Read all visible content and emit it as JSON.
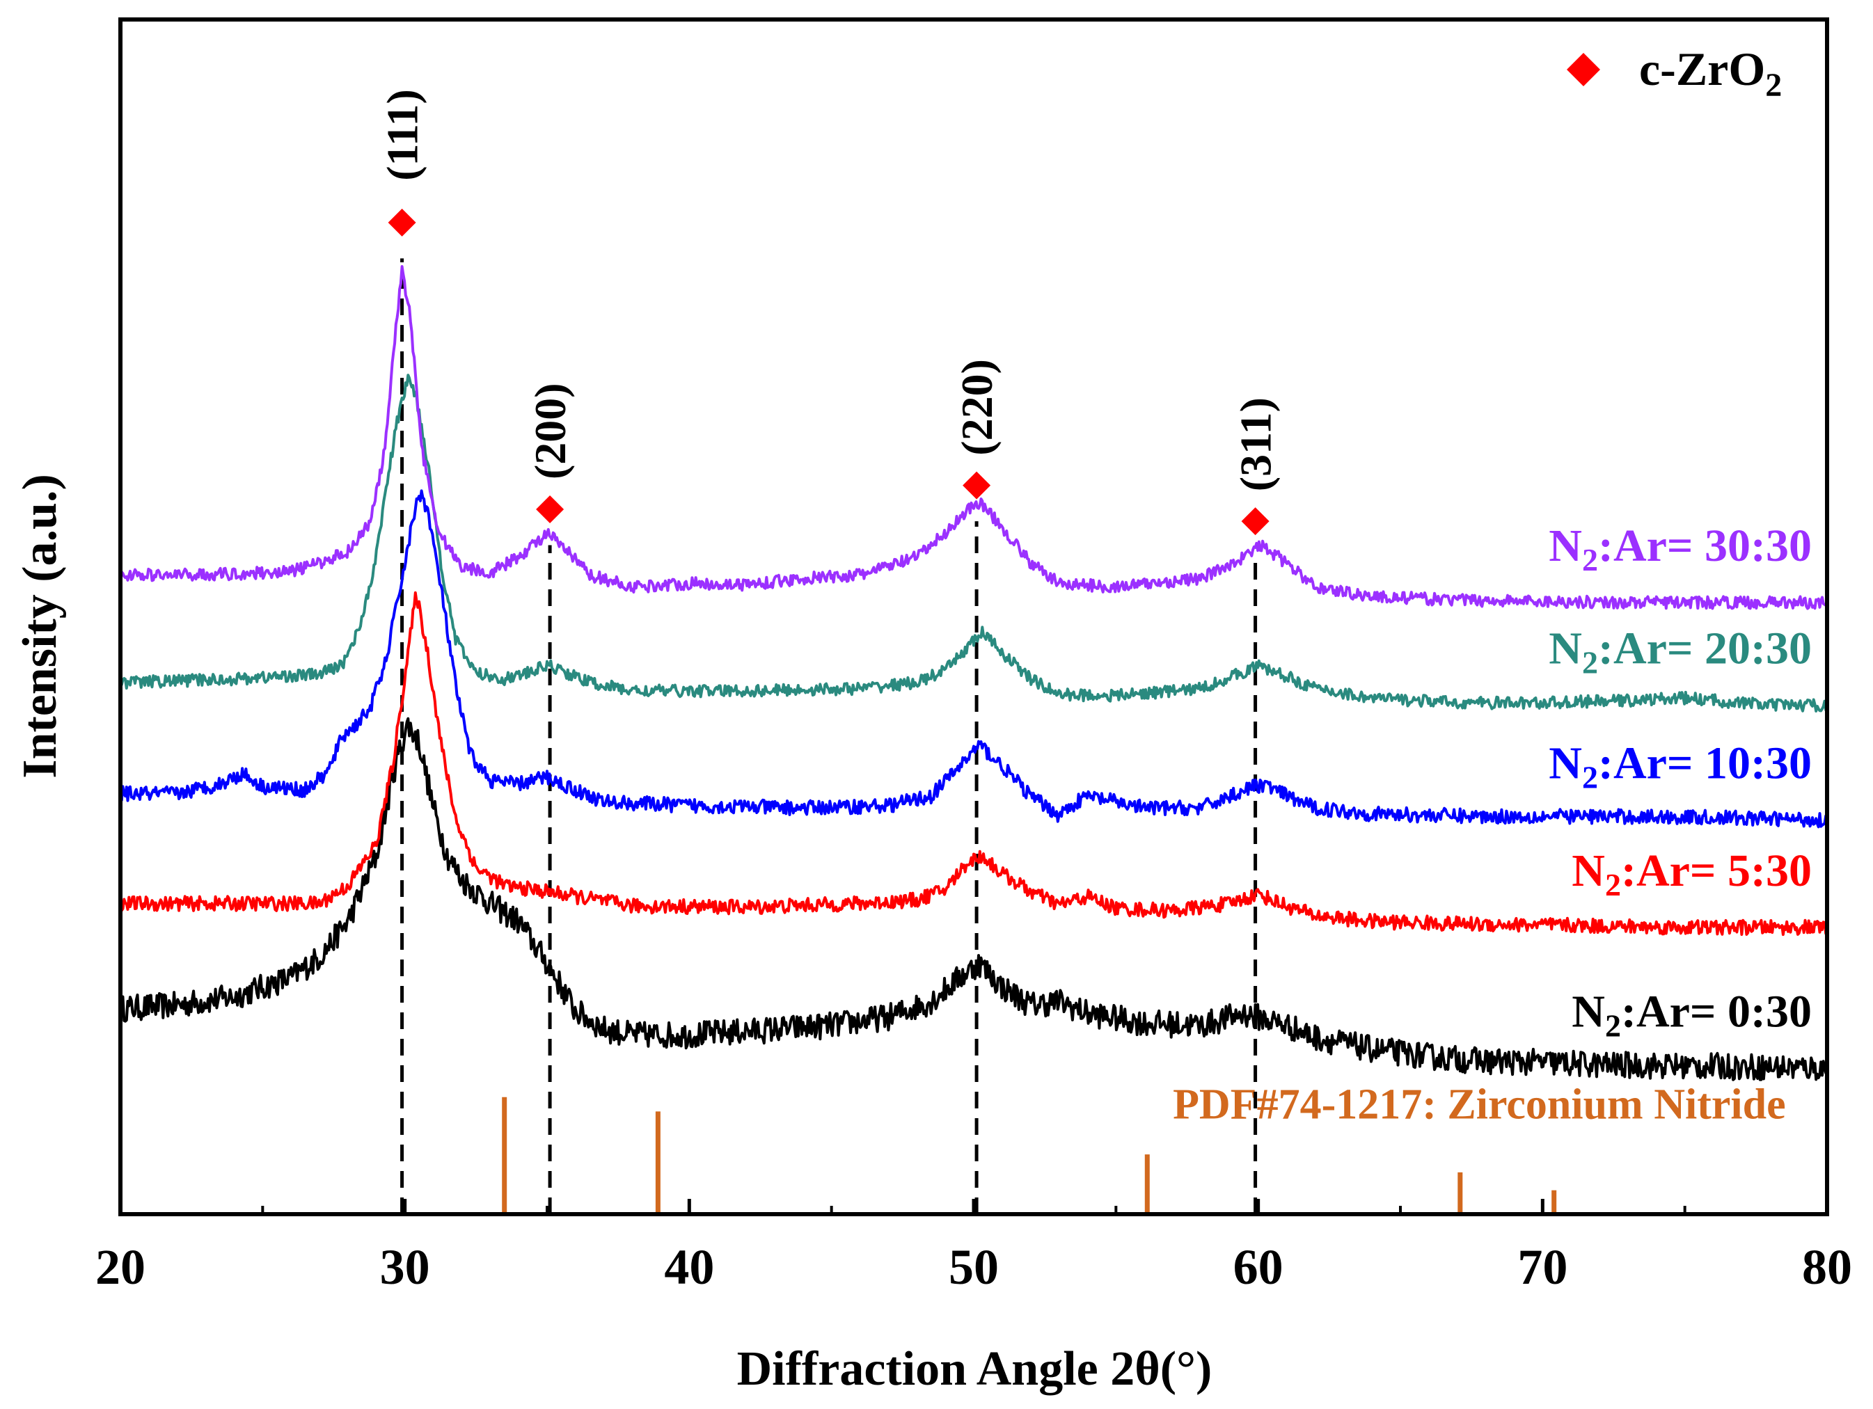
{
  "chart_data": {
    "type": "line",
    "title": "",
    "xlabel": "Diffraction Angle 2θ(°)",
    "ylabel": "Intensity (a.u.)",
    "xlim": [
      20,
      80
    ],
    "ylim": [
      0,
      100
    ],
    "xticks": [
      20,
      30,
      40,
      50,
      60,
      70,
      80
    ],
    "grid": false,
    "legend": {
      "position": "top-right",
      "label": "c-ZrO",
      "sub": "2",
      "color": "#ff0000",
      "marker": "diamond"
    },
    "marker_color": "#ff0000",
    "series": [
      {
        "name": "N2:Ar= 0:30",
        "label_main": "N",
        "label_sub": "2",
        "label_rest": ":Ar= 0:30",
        "color": "#000000",
        "noise": 1.1,
        "points": [
          [
            20,
            17.2
          ],
          [
            22,
            17.5
          ],
          [
            24,
            18.2
          ],
          [
            26,
            19.8
          ],
          [
            27,
            21.5
          ],
          [
            28,
            24.5
          ],
          [
            29,
            30
          ],
          [
            29.7,
            38
          ],
          [
            30.1,
            41
          ],
          [
            30.5,
            39.5
          ],
          [
            31,
            34
          ],
          [
            31.5,
            30
          ],
          [
            32,
            28
          ],
          [
            33,
            26
          ],
          [
            34,
            24.5
          ],
          [
            35,
            21
          ],
          [
            36,
            17
          ],
          [
            37,
            15.5
          ],
          [
            38,
            15
          ],
          [
            40,
            15
          ],
          [
            42,
            15.3
          ],
          [
            45,
            15.8
          ],
          [
            47,
            16.5
          ],
          [
            48.5,
            17.8
          ],
          [
            49.5,
            19.8
          ],
          [
            50.2,
            21
          ],
          [
            51,
            19
          ],
          [
            52,
            17.5
          ],
          [
            53,
            17.8
          ],
          [
            54,
            16.8
          ],
          [
            56,
            16
          ],
          [
            58,
            15.8
          ],
          [
            59.5,
            16.8
          ],
          [
            60,
            16.5
          ],
          [
            61,
            15.8
          ],
          [
            62,
            14.8
          ],
          [
            64,
            13.8
          ],
          [
            66,
            13.2
          ],
          [
            68,
            12.8
          ],
          [
            70,
            12.7
          ],
          [
            72,
            12.5
          ],
          [
            75,
            12.4
          ],
          [
            78,
            12.3
          ],
          [
            80,
            12.2
          ]
        ]
      },
      {
        "name": "N2:Ar= 5:30",
        "label_main": "N",
        "label_sub": "2",
        "label_rest": ":Ar= 5:30",
        "color": "#ff0000",
        "noise": 0.6,
        "points": [
          [
            20,
            26
          ],
          [
            24,
            26
          ],
          [
            27,
            26
          ],
          [
            28,
            27.5
          ],
          [
            29,
            31
          ],
          [
            29.6,
            38
          ],
          [
            30,
            45
          ],
          [
            30.4,
            52
          ],
          [
            30.8,
            47
          ],
          [
            31.3,
            39
          ],
          [
            31.8,
            33
          ],
          [
            32.5,
            29
          ],
          [
            33.5,
            27.5
          ],
          [
            35,
            27
          ],
          [
            38,
            25.8
          ],
          [
            42,
            25.7
          ],
          [
            46,
            26
          ],
          [
            48,
            26.3
          ],
          [
            49,
            27.2
          ],
          [
            49.8,
            29.5
          ],
          [
            50.3,
            30
          ],
          [
            51,
            28.5
          ],
          [
            52,
            27
          ],
          [
            53,
            25.9
          ],
          [
            54,
            26.6
          ],
          [
            55,
            25.6
          ],
          [
            57,
            25.4
          ],
          [
            59,
            26
          ],
          [
            60,
            26.8
          ],
          [
            61,
            25.8
          ],
          [
            62,
            25
          ],
          [
            64,
            24.5
          ],
          [
            67,
            24.3
          ],
          [
            70,
            24.2
          ],
          [
            75,
            24
          ],
          [
            80,
            24
          ]
        ]
      },
      {
        "name": "N2:Ar= 10:30",
        "label_main": "N",
        "label_sub": "2",
        "label_rest": ":Ar= 10:30",
        "color": "#0000ff",
        "noise": 0.6,
        "points": [
          [
            20,
            35.2
          ],
          [
            22,
            35.2
          ],
          [
            23.5,
            36
          ],
          [
            24.3,
            36.9
          ],
          [
            25,
            35.8
          ],
          [
            26.5,
            35.5
          ],
          [
            27.3,
            37
          ],
          [
            27.8,
            40
          ],
          [
            28.3,
            41
          ],
          [
            28.8,
            42.5
          ],
          [
            29.3,
            46
          ],
          [
            29.8,
            52
          ],
          [
            30.2,
            57
          ],
          [
            30.5,
            60.5
          ],
          [
            30.8,
            59
          ],
          [
            31.3,
            52
          ],
          [
            31.8,
            44
          ],
          [
            32.3,
            38.5
          ],
          [
            33,
            36.3
          ],
          [
            34,
            36
          ],
          [
            35,
            36.6
          ],
          [
            35.5,
            36
          ],
          [
            37,
            34.5
          ],
          [
            40,
            34.2
          ],
          [
            44,
            34
          ],
          [
            47,
            34.2
          ],
          [
            48.5,
            35
          ],
          [
            49.5,
            37.5
          ],
          [
            50.2,
            39.3
          ],
          [
            51,
            37.5
          ],
          [
            52,
            35
          ],
          [
            53,
            33.4
          ],
          [
            53.5,
            34.3
          ],
          [
            54,
            35
          ],
          [
            55,
            34.5
          ],
          [
            56,
            34
          ],
          [
            58,
            34
          ],
          [
            59.5,
            35.5
          ],
          [
            60.2,
            36
          ],
          [
            61,
            35
          ],
          [
            62,
            34
          ],
          [
            64,
            33.5
          ],
          [
            68,
            33.3
          ],
          [
            72,
            33.3
          ],
          [
            76,
            33.2
          ],
          [
            80,
            33
          ]
        ]
      },
      {
        "name": "N2:Ar= 20:30",
        "label_main": "N",
        "label_sub": "2",
        "label_rest": ":Ar= 20:30",
        "color": "#2a8a7f",
        "noise": 0.5,
        "points": [
          [
            20,
            44.5
          ],
          [
            24,
            44.8
          ],
          [
            27,
            45.2
          ],
          [
            27.8,
            46
          ],
          [
            28.3,
            48.5
          ],
          [
            28.8,
            52.5
          ],
          [
            29.3,
            60
          ],
          [
            29.7,
            66
          ],
          [
            30.1,
            70
          ],
          [
            30.4,
            68.5
          ],
          [
            30.8,
            63
          ],
          [
            31.3,
            54
          ],
          [
            31.8,
            48
          ],
          [
            32.5,
            45.3
          ],
          [
            33.5,
            44.8
          ],
          [
            34.5,
            45.4
          ],
          [
            35,
            46
          ],
          [
            35.5,
            45.5
          ],
          [
            36.5,
            44.5
          ],
          [
            38,
            43.8
          ],
          [
            42,
            43.8
          ],
          [
            46,
            44
          ],
          [
            48,
            44.5
          ],
          [
            49,
            45.5
          ],
          [
            49.8,
            47.5
          ],
          [
            50.3,
            48.7
          ],
          [
            51,
            47
          ],
          [
            52,
            44.8
          ],
          [
            53,
            43.5
          ],
          [
            55,
            43.4
          ],
          [
            58,
            44
          ],
          [
            59.5,
            45.4
          ],
          [
            60,
            45.9
          ],
          [
            61,
            45
          ],
          [
            62,
            44
          ],
          [
            64,
            43.2
          ],
          [
            67,
            42.8
          ],
          [
            70,
            42.8
          ],
          [
            73,
            43
          ],
          [
            75,
            43.2
          ],
          [
            78,
            42.6
          ],
          [
            80,
            42.6
          ]
        ]
      },
      {
        "name": "N2:Ar= 30:30",
        "label_main": "N",
        "label_sub": "2",
        "label_rest": ":Ar= 30:30",
        "color": "#9b30ff",
        "noise": 0.5,
        "points": [
          [
            20,
            53.5
          ],
          [
            22,
            53.5
          ],
          [
            24,
            53.6
          ],
          [
            26,
            53.8
          ],
          [
            27,
            54.5
          ],
          [
            28,
            55.5
          ],
          [
            28.8,
            58
          ],
          [
            29.3,
            64
          ],
          [
            29.6,
            72
          ],
          [
            29.9,
            79
          ],
          [
            30.2,
            75
          ],
          [
            30.6,
            64
          ],
          [
            31.2,
            57
          ],
          [
            32,
            54.2
          ],
          [
            33,
            53.7
          ],
          [
            34,
            55
          ],
          [
            35,
            57
          ],
          [
            35.7,
            55.5
          ],
          [
            36.5,
            53.5
          ],
          [
            38,
            52.5
          ],
          [
            40,
            52.8
          ],
          [
            42,
            52.7
          ],
          [
            44,
            53.2
          ],
          [
            46,
            53.5
          ],
          [
            48,
            55
          ],
          [
            49,
            57
          ],
          [
            49.8,
            59
          ],
          [
            50.2,
            59.6
          ],
          [
            51,
            57.5
          ],
          [
            52,
            54.5
          ],
          [
            53,
            52.8
          ],
          [
            55,
            52.5
          ],
          [
            58,
            53.2
          ],
          [
            59.5,
            55
          ],
          [
            60.1,
            56
          ],
          [
            61,
            54.5
          ],
          [
            62,
            52.5
          ],
          [
            64,
            51.7
          ],
          [
            67,
            51.4
          ],
          [
            70,
            51.3
          ],
          [
            73,
            51.2
          ],
          [
            76,
            51.2
          ],
          [
            80,
            51.2
          ]
        ]
      }
    ],
    "peaks": [
      {
        "x": 29.9,
        "label": "(111)",
        "marker_y": 83,
        "text_y": 86.5
      },
      {
        "x": 35.1,
        "label": "(200)",
        "marker_y": 59,
        "text_y": 61.5
      },
      {
        "x": 50.1,
        "label": "(220)",
        "marker_y": 61,
        "text_y": 63.5
      },
      {
        "x": 59.9,
        "label": "(311)",
        "marker_y": 58,
        "text_y": 60.5
      }
    ],
    "reference": {
      "label": "PDF#74-1217: Zirconium Nitride",
      "color": "#d2691e",
      "lines": [
        {
          "x": 33.5,
          "h": 9.8
        },
        {
          "x": 38.9,
          "h": 8.6
        },
        {
          "x": 56.1,
          "h": 5
        },
        {
          "x": 67.1,
          "h": 3.5
        },
        {
          "x": 70.4,
          "h": 2
        }
      ],
      "label_x": 57,
      "label_y": 8
    }
  }
}
